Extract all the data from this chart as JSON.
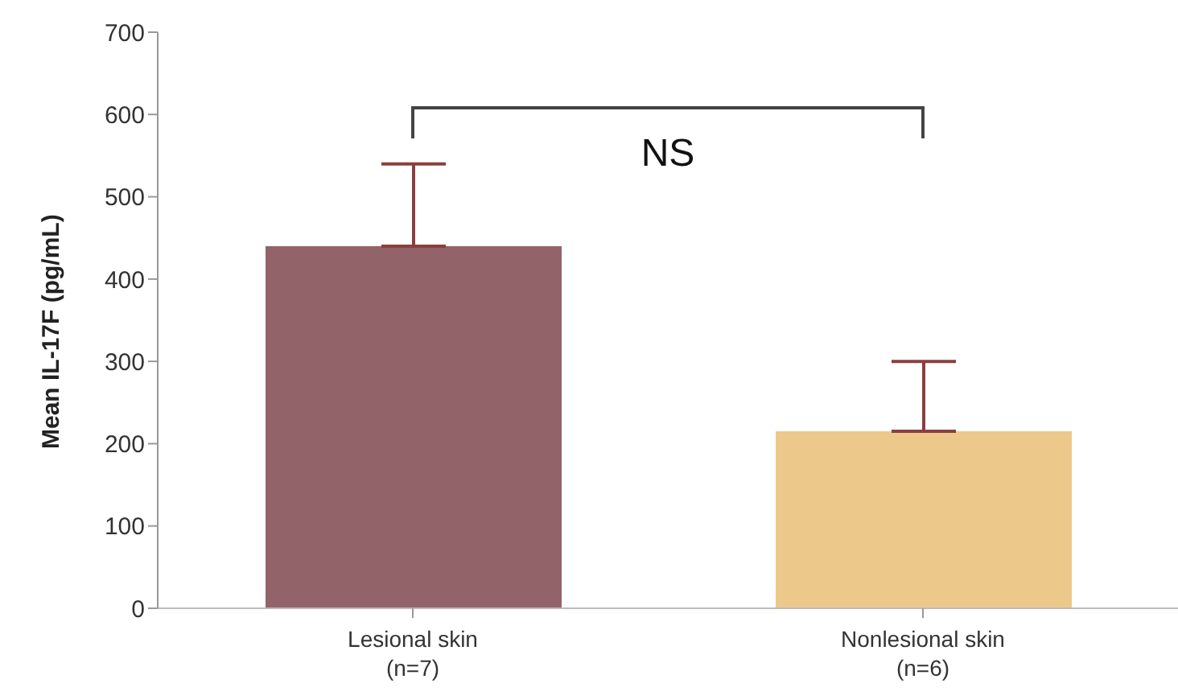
{
  "chart_data": {
    "type": "bar",
    "ylabel": "Mean IL-17F (pg/mL)",
    "categories": [
      "Lesional skin\n(n=7)",
      "Nonlesional skin\n(n=6)"
    ],
    "values": [
      440,
      215
    ],
    "colors": [
      "#93636a",
      "#ecc98a"
    ],
    "errors": [
      [
        440,
        540
      ],
      [
        215,
        300
      ]
    ],
    "ylim": [
      0,
      700
    ],
    "yticks": [
      0,
      100,
      200,
      300,
      400,
      500,
      600,
      700
    ],
    "annotations": [
      "NS"
    ]
  }
}
